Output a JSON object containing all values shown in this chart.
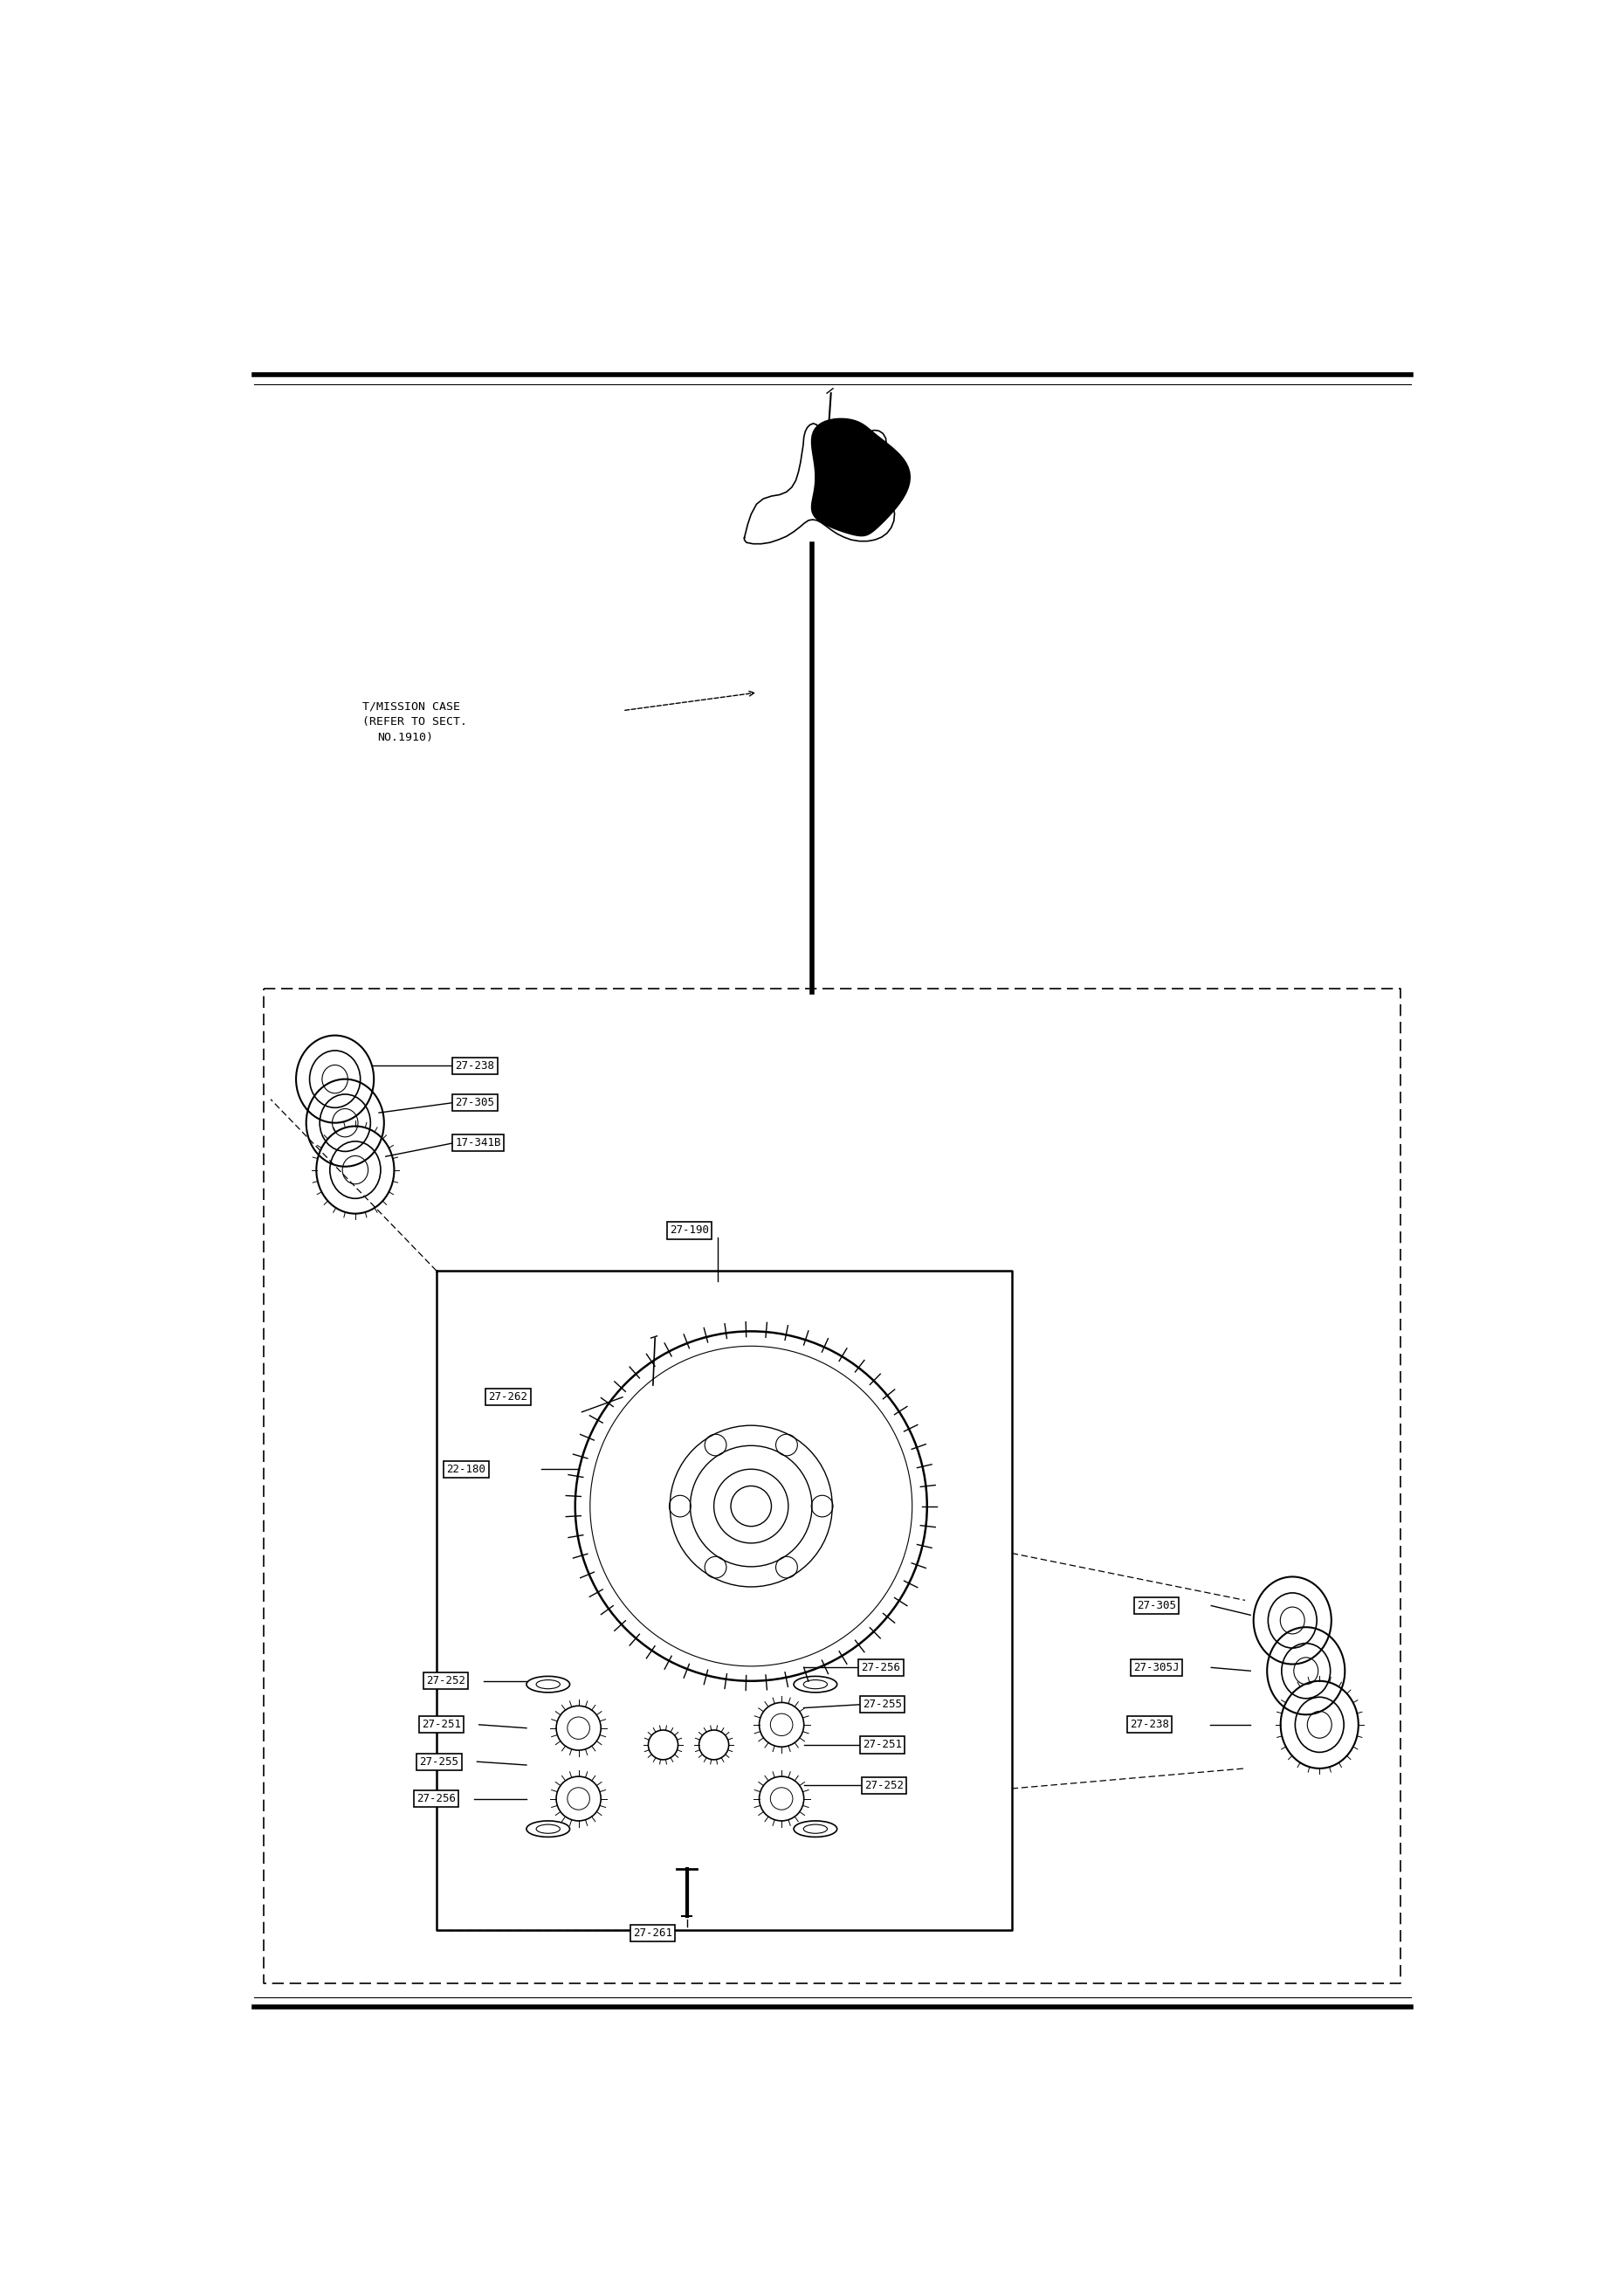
{
  "bg_color": "#ffffff",
  "line_color": "#000000",
  "part_labels_left_top": [
    "27-238",
    "27-305",
    "17-341B"
  ],
  "part_label_center_top": "27-190",
  "part_labels_inner_left": [
    "27-262",
    "22-180"
  ],
  "part_labels_inner_mid_left": [
    "27-252",
    "27-251",
    "27-255",
    "27-256",
    "27-261"
  ],
  "part_labels_inner_mid_right": [
    "27-256",
    "27-255",
    "27-251",
    "27-252"
  ],
  "part_labels_outer_right": [
    "27-305",
    "27-305J",
    "27-238"
  ],
  "font_size_label": 9
}
